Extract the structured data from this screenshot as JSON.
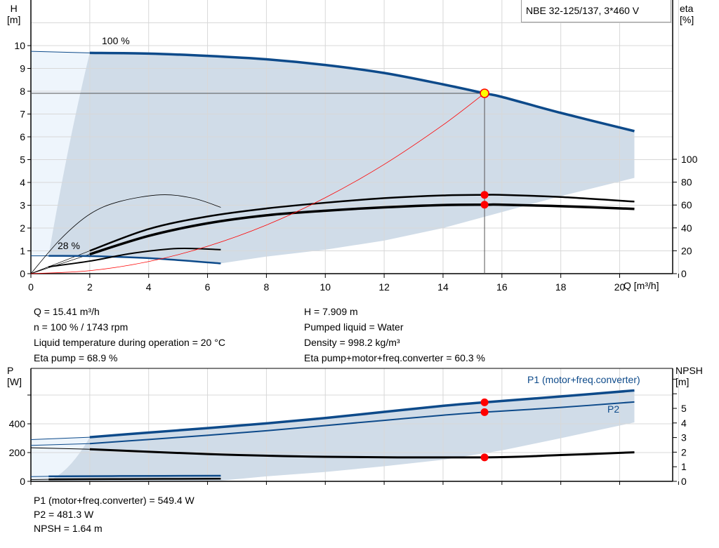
{
  "title": "NBE 32-125/137, 3*460 V",
  "colors": {
    "head_curve": "#0d4a8a",
    "efficiency_curve": "#000000",
    "system_curve": "#ff0000",
    "operating_point": "#ffff00",
    "marker": "#ff0000",
    "area": "#d0dce8",
    "area_light": "#eef5fc",
    "grid": "#d8d8d8"
  },
  "info": {
    "left": [
      "Q = 15.41 m³/h",
      "n = 100 % / 1743 rpm",
      "Liquid temperature during operation = 20 °C",
      "Eta pump = 68.9 %"
    ],
    "right": [
      "H = 7.909 m",
      "Pumped liquid = Water",
      "Density = 998.2 kg/m³",
      "Eta pump+motor+freq.converter = 60.3 %"
    ],
    "bottom": [
      "P1 (motor+freq.converter) = 549.4 W",
      "P2 = 481.3 W",
      "NPSH = 1.64 m"
    ]
  },
  "chart_data": [
    {
      "type": "line",
      "xlabel": "Q [m³/h]",
      "ylabel": "H\n[m]",
      "y2label": "eta\n[%]",
      "xlim": [
        0,
        21.8
      ],
      "ylim": [
        0,
        12
      ],
      "y2lim": [
        0,
        100
      ],
      "xticks": [
        0,
        2,
        4,
        6,
        8,
        10,
        12,
        14,
        16,
        18,
        20
      ],
      "yticks": [
        0,
        1,
        2,
        3,
        4,
        5,
        6,
        7,
        8,
        9,
        10
      ],
      "y2ticks": [
        0,
        20,
        40,
        60,
        80,
        100
      ],
      "grid": true,
      "curve_labels": [
        "100 %",
        "28 %"
      ],
      "operating_point": {
        "Q": 15.41,
        "H": 7.909,
        "eta_pump": 68.9,
        "eta_total": 60.3
      },
      "series": [
        {
          "id": "head-100",
          "axis": "H",
          "x": [
            2,
            4,
            6,
            8,
            10,
            12,
            14,
            15.41,
            16,
            18,
            20.5
          ],
          "y": [
            9.68,
            9.65,
            9.55,
            9.4,
            9.15,
            8.8,
            8.3,
            7.909,
            7.75,
            7.05,
            6.25
          ]
        },
        {
          "id": "head-28",
          "axis": "H",
          "x": [
            0.6,
            2,
            4,
            6.45
          ],
          "y": [
            0.78,
            0.77,
            0.68,
            0.45
          ]
        },
        {
          "id": "eta-pump-100",
          "axis": "eta",
          "x": [
            2,
            4,
            6,
            8,
            10,
            12,
            14,
            15.41,
            16,
            18,
            20.5
          ],
          "y": [
            20,
            39,
            50,
            57,
            62,
            66,
            68.4,
            68.9,
            68.9,
            67,
            63
          ]
        },
        {
          "id": "eta-total-100",
          "axis": "eta",
          "x": [
            2,
            4,
            6,
            8,
            10,
            12,
            14,
            15.41,
            16,
            18,
            20.5
          ],
          "y": [
            17,
            33,
            44,
            51,
            55,
            58,
            60,
            60.3,
            60.3,
            59,
            56.6
          ]
        },
        {
          "id": "eta-pump-28",
          "axis": "eta",
          "x": [
            0,
            1,
            2,
            3,
            4.4,
            5.5,
            6.45
          ],
          "y": [
            0,
            30,
            52,
            63,
            68.9,
            66,
            58
          ]
        },
        {
          "id": "eta-total-28",
          "axis": "eta",
          "x": [
            0.6,
            2,
            3.5,
            5,
            6.45
          ],
          "y": [
            6,
            11,
            18,
            22,
            21
          ]
        },
        {
          "id": "system-curve",
          "axis": "H",
          "x": [
            0,
            2,
            4,
            6,
            8,
            10,
            12,
            14,
            15.41
          ],
          "y": [
            0,
            0.13,
            0.53,
            1.2,
            2.13,
            3.33,
            4.79,
            6.52,
            7.909
          ]
        }
      ]
    },
    {
      "type": "line",
      "xlabel": "",
      "ylabel": "P\n[W]",
      "y2label": "NPSH\n[m]",
      "xlim": [
        0,
        21.8
      ],
      "ylim": [
        0,
        785
      ],
      "y2lim": [
        0,
        7.5
      ],
      "yticks": [
        0,
        200,
        400
      ],
      "y2ticks": [
        0,
        1,
        2,
        3,
        4,
        5
      ],
      "grid": true,
      "legend": [
        "P1 (motor+freq.converter)",
        "P2"
      ],
      "operating_point": {
        "Q": 15.41,
        "P1": 549.4,
        "P2": 481.3,
        "NPSH": 1.64
      },
      "series": [
        {
          "id": "p1-100",
          "axis": "P",
          "x": [
            2,
            4,
            6,
            8,
            10,
            12,
            14,
            15.41,
            18,
            20.5
          ],
          "y": [
            307,
            339,
            370,
            403,
            440,
            483,
            525,
            549.4,
            590,
            632
          ]
        },
        {
          "id": "p2-100",
          "axis": "P",
          "x": [
            2,
            4,
            6,
            8,
            10,
            12,
            14,
            15.41,
            18,
            20.5
          ],
          "y": [
            262,
            291,
            320,
            352,
            388,
            424,
            460,
            481.3,
            514,
            552
          ]
        },
        {
          "id": "npsh-100",
          "axis": "NPSH",
          "x": [
            2,
            6,
            10,
            15.41,
            18,
            20.5
          ],
          "y": [
            2.2,
            1.87,
            1.68,
            1.64,
            1.8,
            1.99
          ]
        },
        {
          "id": "p1-28",
          "axis": "P",
          "x": [
            0.6,
            3,
            6.45
          ],
          "y": [
            35,
            37,
            39
          ]
        },
        {
          "id": "p2-28",
          "axis": "P",
          "x": [
            0.6,
            3,
            6.45
          ],
          "y": [
            14,
            16,
            18
          ]
        }
      ]
    }
  ]
}
